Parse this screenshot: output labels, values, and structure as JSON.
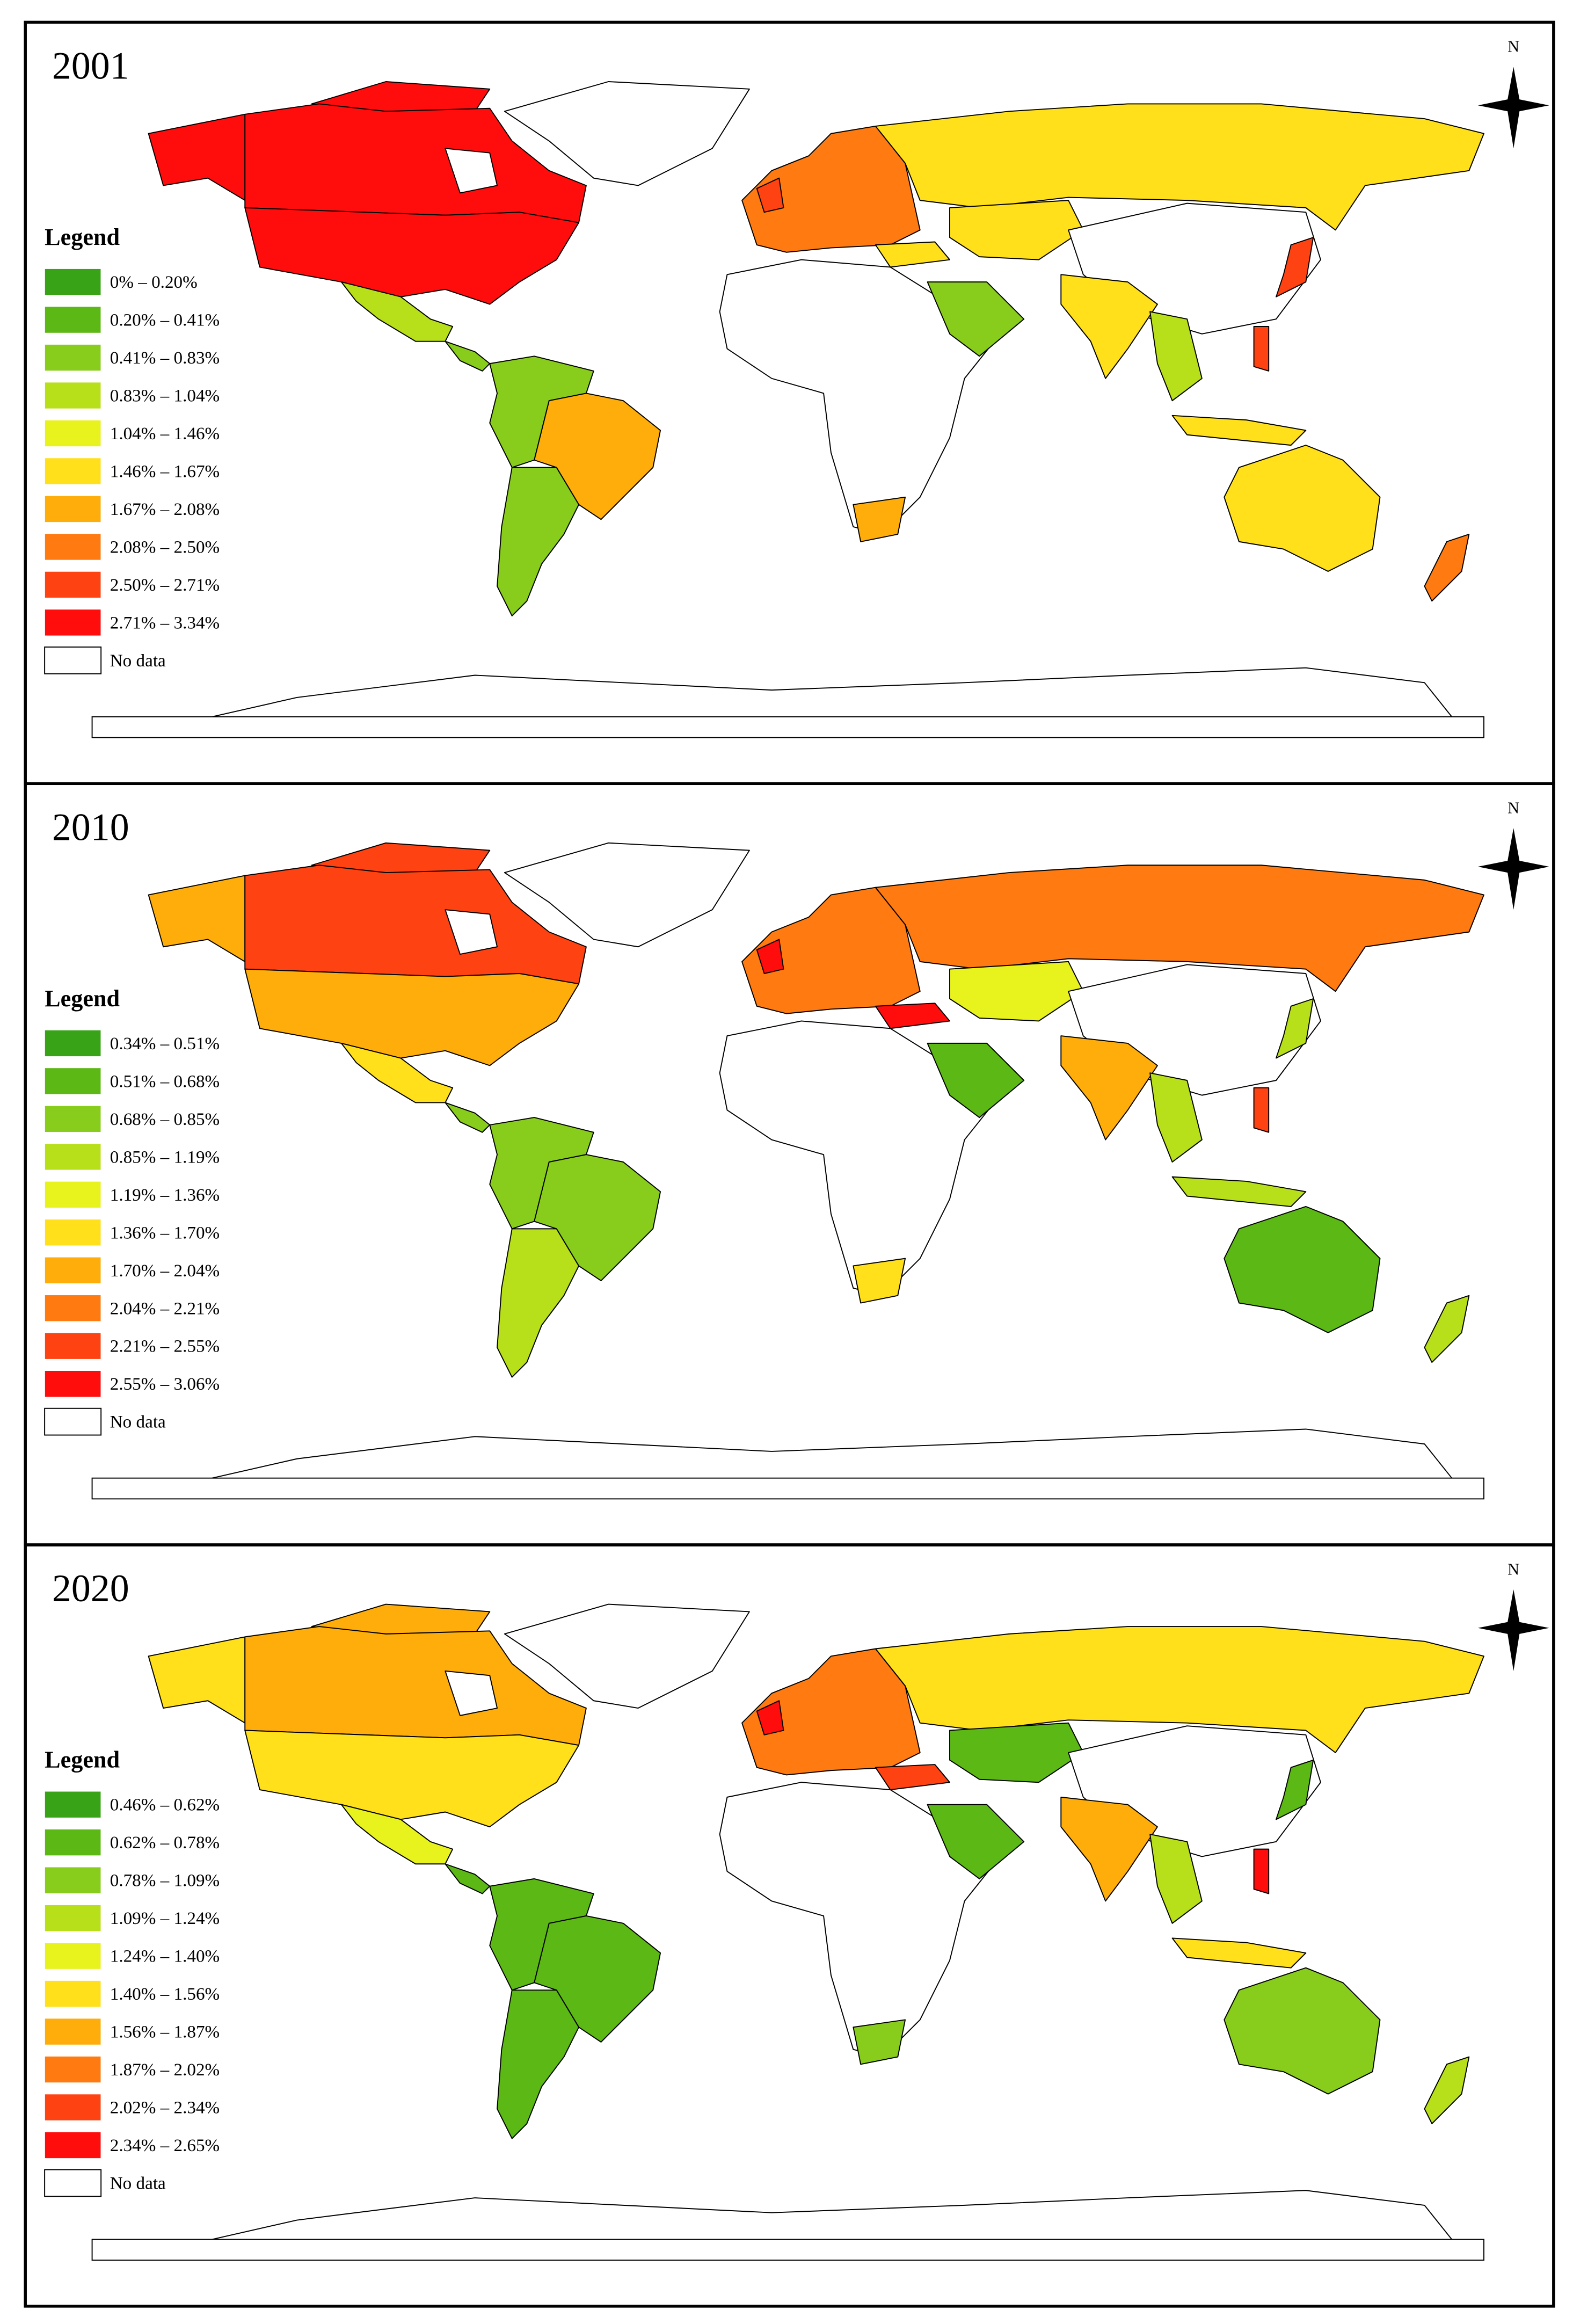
{
  "panels": [
    {
      "year": "2001",
      "north": "N",
      "legend_title": "Legend",
      "no_data": "No data",
      "legend": [
        {
          "label": "0% – 0.20%",
          "color": "#38a317"
        },
        {
          "label": "0.20% – 0.41%",
          "color": "#5cb815"
        },
        {
          "label": "0.41% – 0.83%",
          "color": "#88cc1c"
        },
        {
          "label": "0.83% – 1.04%",
          "color": "#b8e01a"
        },
        {
          "label": "1.04% – 1.46%",
          "color": "#e8f21c"
        },
        {
          "label": "1.46% – 1.67%",
          "color": "#ffe01a"
        },
        {
          "label": "1.67% – 2.08%",
          "color": "#ffad0a"
        },
        {
          "label": "2.08% – 2.50%",
          "color": "#ff7a10"
        },
        {
          "label": "2.50% – 2.71%",
          "color": "#ff4212"
        },
        {
          "label": "2.71% – 3.34%",
          "color": "#ff0d0d"
        }
      ]
    },
    {
      "year": "2010",
      "north": "N",
      "legend_title": "Legend",
      "no_data": "No data",
      "legend": [
        {
          "label": "0.34% – 0.51%",
          "color": "#38a317"
        },
        {
          "label": "0.51% – 0.68%",
          "color": "#5cb815"
        },
        {
          "label": "0.68% – 0.85%",
          "color": "#88cc1c"
        },
        {
          "label": "0.85% – 1.19%",
          "color": "#b8e01a"
        },
        {
          "label": "1.19% – 1.36%",
          "color": "#e8f21c"
        },
        {
          "label": "1.36% – 1.70%",
          "color": "#ffe01a"
        },
        {
          "label": "1.70% – 2.04%",
          "color": "#ffad0a"
        },
        {
          "label": "2.04% – 2.21%",
          "color": "#ff7a10"
        },
        {
          "label": "2.21% – 2.55%",
          "color": "#ff4212"
        },
        {
          "label": "2.55% – 3.06%",
          "color": "#ff0d0d"
        }
      ]
    },
    {
      "year": "2020",
      "north": "N",
      "legend_title": "Legend",
      "no_data": "No data",
      "legend": [
        {
          "label": "0.46% – 0.62%",
          "color": "#38a317"
        },
        {
          "label": "0.62% – 0.78%",
          "color": "#5cb815"
        },
        {
          "label": "0.78% – 1.09%",
          "color": "#88cc1c"
        },
        {
          "label": "1.09% – 1.24%",
          "color": "#b8e01a"
        },
        {
          "label": "1.24% – 1.40%",
          "color": "#e8f21c"
        },
        {
          "label": "1.40% – 1.56%",
          "color": "#ffe01a"
        },
        {
          "label": "1.56% – 1.87%",
          "color": "#ffad0a"
        },
        {
          "label": "1.87% – 2.02%",
          "color": "#ff7a10"
        },
        {
          "label": "2.02% – 2.34%",
          "color": "#ff4212"
        },
        {
          "label": "2.34% – 2.65%",
          "color": "#ff0d0d"
        }
      ]
    }
  ]
}
